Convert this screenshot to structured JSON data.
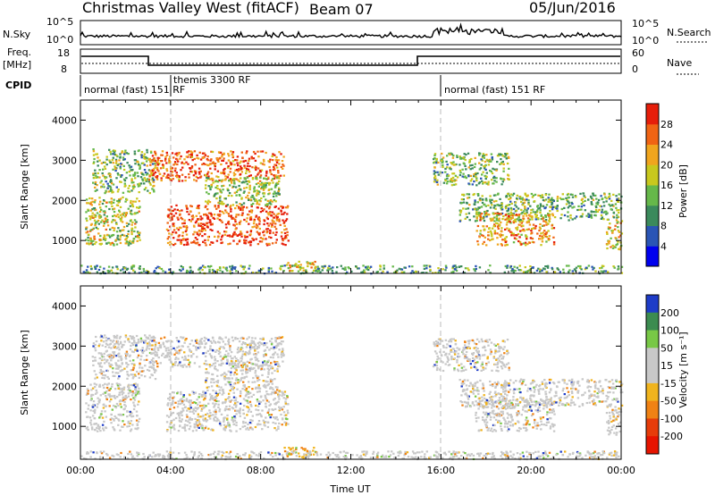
{
  "header": {
    "title": "Christmas Valley West (fitACF)",
    "beam": "Beam 07",
    "date": "05/Jun/2016"
  },
  "top_panels": {
    "nsky_label": "N.Sky",
    "nsky_ticks": [
      "10^5",
      "10^0"
    ],
    "nsearch_label": "N.Search",
    "nsearch_ticks": [
      "10^5",
      "10^0"
    ],
    "freq_label": "Freq.",
    "freq_unit": "[MHz]",
    "freq_ticks": [
      "18",
      "8"
    ],
    "nave_label": "Nave",
    "nave_ticks": [
      "60",
      "0"
    ],
    "cpid_label": "CPID",
    "cpid_segments": [
      {
        "label": "normal (fast) 151 RF",
        "start_hour": 0,
        "end_hour": 4
      },
      {
        "label": "themis 3300 RF",
        "start_hour": 4,
        "end_hour": 16
      },
      {
        "label": "normal (fast) 151 RF",
        "start_hour": 16,
        "end_hour": 24
      }
    ]
  },
  "chart_data": [
    {
      "type": "heatmap",
      "title": "Power",
      "ylabel": "Slant Range [km]",
      "xlabel": "",
      "ylim": [
        180,
        4500
      ],
      "yticks": [
        "1000",
        "2000",
        "3000",
        "4000"
      ],
      "xlim_hours": [
        0,
        24
      ],
      "colorbar": {
        "label": "Power [dB]",
        "range": [
          0,
          32
        ],
        "ticks": [
          "4",
          "8",
          "12",
          "16",
          "20",
          "24",
          "28"
        ],
        "colors": [
          "#0000ee",
          "#2a55b5",
          "#3b8a5c",
          "#66b84a",
          "#c8c81e",
          "#f0a51e",
          "#f06414",
          "#e61e0a"
        ]
      },
      "echo_regions": [
        {
          "t": [
            0.5,
            3.3
          ],
          "r": [
            2200,
            3300
          ],
          "level": 0.45
        },
        {
          "t": [
            0.2,
            2.6
          ],
          "r": [
            900,
            2100
          ],
          "level": 0.55
        },
        {
          "t": [
            3.0,
            9.0
          ],
          "r": [
            2500,
            3250
          ],
          "level": 0.82
        },
        {
          "t": [
            3.8,
            9.2
          ],
          "r": [
            900,
            1900
          ],
          "level": 0.88
        },
        {
          "t": [
            5.5,
            8.8
          ],
          "r": [
            1900,
            2600
          ],
          "level": 0.5
        },
        {
          "t": [
            9.0,
            10.4
          ],
          "r": [
            250,
            500
          ],
          "level": 0.6
        },
        {
          "t": [
            15.6,
            19.0
          ],
          "r": [
            2400,
            3200
          ],
          "level": 0.45
        },
        {
          "t": [
            16.8,
            24.0
          ],
          "r": [
            1500,
            2200
          ],
          "level": 0.42
        },
        {
          "t": [
            17.5,
            21.0
          ],
          "r": [
            900,
            1700
          ],
          "level": 0.7
        },
        {
          "t": [
            23.3,
            24.0
          ],
          "r": [
            800,
            1500
          ],
          "level": 0.6
        },
        {
          "t": [
            0.0,
            24.0
          ],
          "r": [
            200,
            400
          ],
          "level": 0.35
        }
      ]
    },
    {
      "type": "heatmap",
      "title": "Velocity",
      "ylabel": "Slant Range [km]",
      "xlabel": "Time UT",
      "ylim": [
        180,
        4500
      ],
      "yticks": [
        "1000",
        "2000",
        "3000",
        "4000"
      ],
      "xlim_hours": [
        0,
        24
      ],
      "xticks": [
        "00:00",
        "04:00",
        "08:00",
        "12:00",
        "16:00",
        "20:00",
        "00:00"
      ],
      "colorbar": {
        "label": "Velocity [m s⁻¹]",
        "range": [
          -250,
          250
        ],
        "ticks": [
          "200",
          "100",
          "50",
          "15",
          "-15",
          "-50",
          "-100",
          "-200"
        ],
        "colors": [
          "#1e3cc8",
          "#3c8c50",
          "#78c846",
          "#c8c8c8",
          "#c8c8c8",
          "#f0b41e",
          "#f08214",
          "#e63c0a",
          "#e61400"
        ]
      },
      "echo_regions": [
        {
          "t": [
            0.5,
            3.3
          ],
          "r": [
            2200,
            3300
          ],
          "level": 0.5
        },
        {
          "t": [
            0.2,
            2.6
          ],
          "r": [
            900,
            2100
          ],
          "level": 0.5
        },
        {
          "t": [
            3.0,
            9.0
          ],
          "r": [
            2500,
            3250
          ],
          "level": 0.5
        },
        {
          "t": [
            3.8,
            9.2
          ],
          "r": [
            900,
            1900
          ],
          "level": 0.5
        },
        {
          "t": [
            5.5,
            8.8
          ],
          "r": [
            1900,
            2600
          ],
          "level": 0.5
        },
        {
          "t": [
            9.0,
            10.4
          ],
          "r": [
            250,
            500
          ],
          "level": 0.25
        },
        {
          "t": [
            15.6,
            19.0
          ],
          "r": [
            2400,
            3200
          ],
          "level": 0.5
        },
        {
          "t": [
            16.8,
            24.0
          ],
          "r": [
            1500,
            2200
          ],
          "level": 0.5
        },
        {
          "t": [
            17.5,
            21.0
          ],
          "r": [
            900,
            1700
          ],
          "level": 0.5
        },
        {
          "t": [
            23.3,
            24.0
          ],
          "r": [
            800,
            1500
          ],
          "level": 0.5
        },
        {
          "t": [
            0.0,
            24.0
          ],
          "r": [
            200,
            400
          ],
          "level": 0.3
        }
      ]
    }
  ]
}
